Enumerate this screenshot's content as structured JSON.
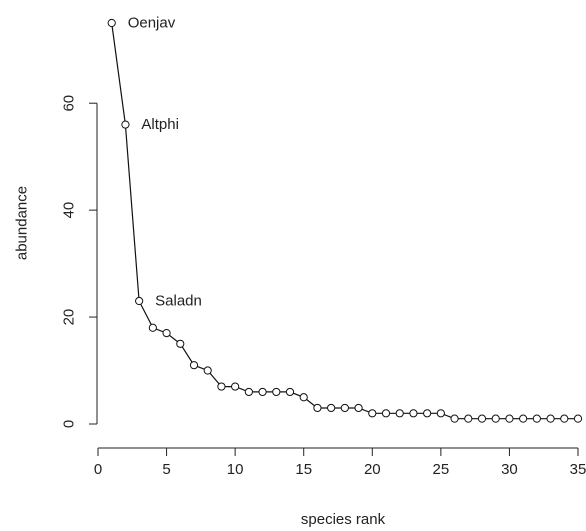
{
  "chart_data": {
    "type": "line",
    "title": "",
    "xlabel": "species rank",
    "ylabel": "abundance",
    "xlim": [
      0,
      35
    ],
    "ylim": [
      0,
      75
    ],
    "x_ticks": [
      0,
      5,
      10,
      15,
      20,
      25,
      30,
      35
    ],
    "y_ticks": [
      0,
      20,
      40,
      60
    ],
    "grid": false,
    "marker": "open-circle",
    "series": [
      {
        "x": [
          1,
          2,
          3,
          4,
          5,
          6,
          7,
          8,
          9,
          10,
          11,
          12,
          13,
          14,
          15,
          16,
          17,
          18,
          19,
          20,
          21,
          22,
          23,
          24,
          25,
          26,
          27,
          28,
          29,
          30,
          31,
          32,
          33,
          34,
          35
        ],
        "values": [
          75,
          56,
          23,
          18,
          17,
          15,
          11,
          10,
          7,
          7,
          6,
          6,
          6,
          6,
          5,
          3,
          3,
          3,
          3,
          2,
          2,
          2,
          2,
          2,
          2,
          1,
          1,
          1,
          1,
          1,
          1,
          1,
          1,
          1,
          1
        ]
      }
    ],
    "annotations": [
      {
        "text": "Oenjav",
        "x": 1,
        "y": 75
      },
      {
        "text": "Altphi",
        "x": 2,
        "y": 56
      },
      {
        "text": "Saladn",
        "x": 3,
        "y": 23
      }
    ]
  }
}
